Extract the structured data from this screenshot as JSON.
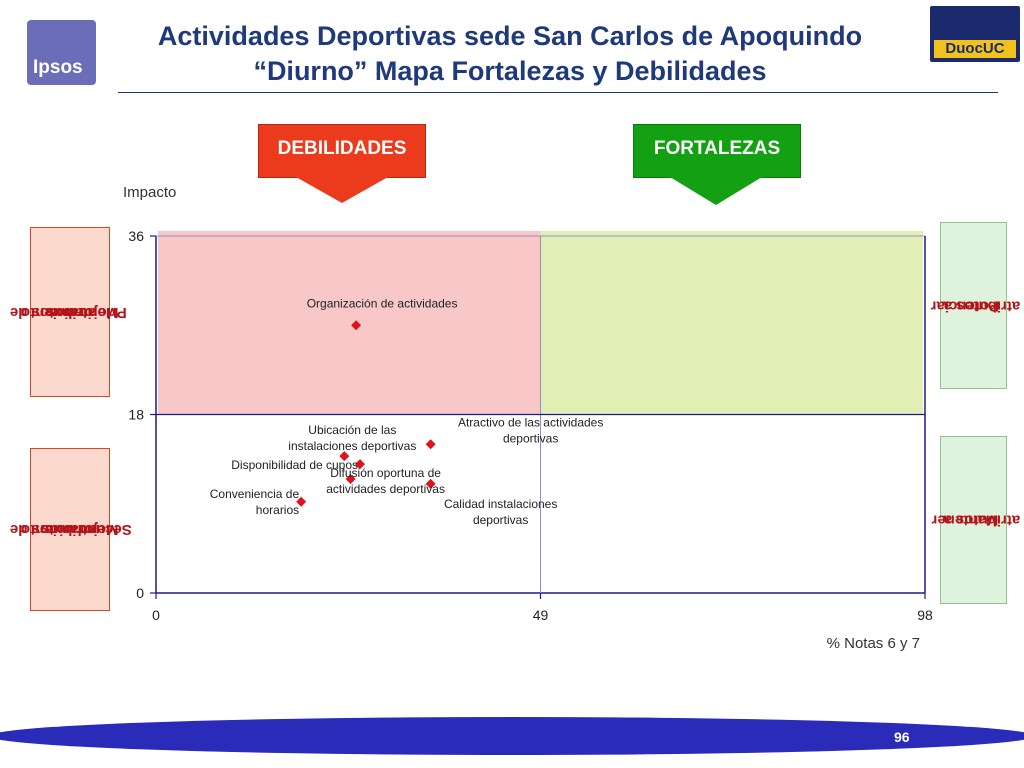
{
  "header": {
    "title_line1": "Actividades Deportivas sede San Carlos de Apoquindo",
    "title_line2": "“Diurno” Mapa Fortalezas y Debilidades",
    "logo_left_text": "Ipsos",
    "logo_right_text": "DuocUC"
  },
  "tags": {
    "debilidades": "DEBILIDADES",
    "fortalezas": "FORTALEZAS"
  },
  "quadrant_labels": {
    "left_top": [
      "atributos de",
      "Mejoramiento",
      "Prioritarios"
    ],
    "left_bottom": [
      "atributos de",
      "Mejoramiento",
      "Secundarios"
    ],
    "right_top": [
      "atributos a",
      "Potenciar"
    ],
    "right_bottom": [
      "atributos a",
      "Mantener"
    ]
  },
  "colors": {
    "title": "#1f3a7a",
    "debilidades": "#ec3a1c",
    "fortalezas": "#13a013",
    "quadrant_top_left": "#f8c8c8",
    "quadrant_top_right": "#e2efb4",
    "marker": "#e0121a",
    "axes": "#1a1a8c",
    "footer": "#2a2bb8"
  },
  "chart_data": {
    "type": "scatter",
    "ylabel": "Impacto",
    "xlabel": "% Notas 6 y 7",
    "xlim": [
      0,
      98
    ],
    "ylim": [
      0,
      36
    ],
    "xticks": [
      0,
      49,
      98
    ],
    "yticks": [
      0,
      18,
      36
    ],
    "x_divider": 49,
    "y_divider": 18,
    "points": [
      {
        "label": [
          "Organización de actividades"
        ],
        "x": 25.5,
        "y": 27.0
      },
      {
        "label": [
          "Ubicación de las",
          "instalaciones deportivas"
        ],
        "x": 24.0,
        "y": 13.8
      },
      {
        "label": [
          "Atractivo de las actividades",
          "deportivas"
        ],
        "x": 35.0,
        "y": 15.0
      },
      {
        "label": [
          "Disponibilidad de cupos"
        ],
        "x": 26.0,
        "y": 13.0
      },
      {
        "label": [
          "Calidad instalaciones",
          "deportivas"
        ],
        "x": 35.0,
        "y": 11.0
      },
      {
        "label": [
          "Conveniencia de",
          "horarios"
        ],
        "x": 18.5,
        "y": 9.2
      },
      {
        "label": [
          "Difusión oportuna de",
          "actividades deportivas"
        ],
        "x": 24.8,
        "y": 11.5
      }
    ]
  },
  "footer": {
    "page_number": "96"
  }
}
